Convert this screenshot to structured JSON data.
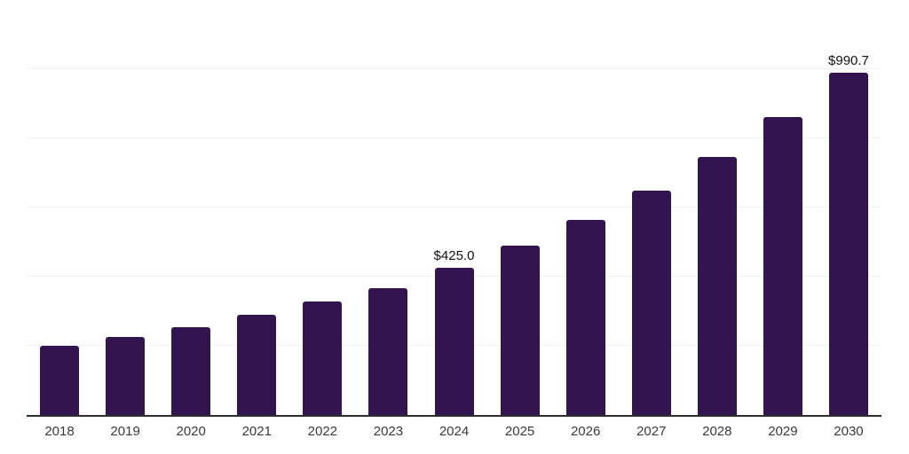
{
  "chart_data": {
    "type": "bar",
    "title": "",
    "categories": [
      "2018",
      "2019",
      "2020",
      "2021",
      "2022",
      "2023",
      "2024",
      "2025",
      "2026",
      "2027",
      "2028",
      "2029",
      "2030"
    ],
    "values": [
      200.0,
      225.3,
      254.6,
      291.0,
      327.7,
      368.0,
      425.0,
      489.4,
      563.5,
      648.9,
      747.2,
      860.4,
      990.7
    ],
    "bar_labels": {
      "2024": "$425.0",
      "2030": "$990.7"
    },
    "xlabel": "",
    "ylabel": "",
    "ylim": [
      0,
      1200
    ],
    "gridline_step": 200,
    "grid": true,
    "legend": "none",
    "colors": {
      "bar": "#32154e",
      "gridline": "#f0f0f0",
      "axis": "#2e2e2e",
      "tick_label": "#3a3a3a",
      "value_label": "#111111",
      "background": "#ffffff"
    }
  }
}
